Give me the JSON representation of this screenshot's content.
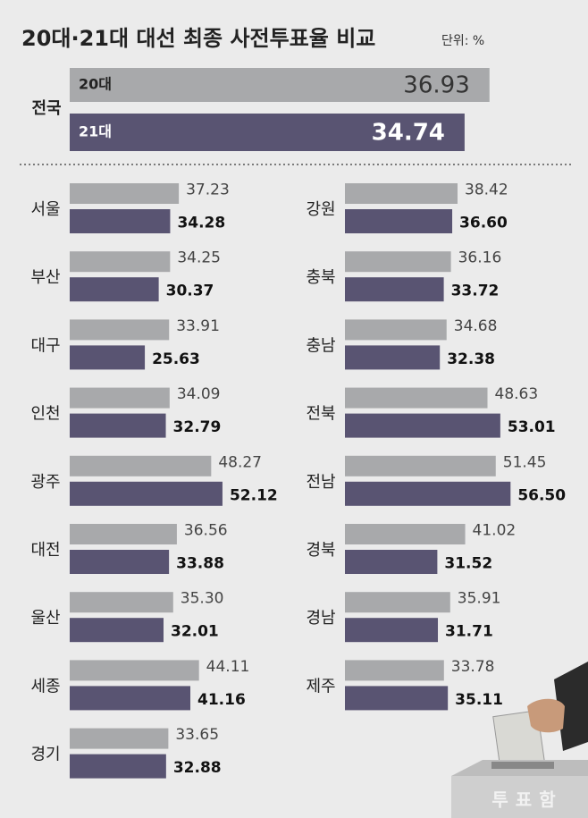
{
  "chart_data": [
    {
      "type": "bar",
      "title": "20대·21대 대선 최종 사전투표율 비교",
      "unit_note": "단위: %",
      "categories": [
        "전국"
      ],
      "series": [
        {
          "name": "20대",
          "color": "#a8a9ab",
          "values": [
            36.93
          ]
        },
        {
          "name": "21대",
          "color": "#595472",
          "values": [
            34.74
          ]
        }
      ]
    },
    {
      "type": "bar",
      "categories": [
        "서울",
        "부산",
        "대구",
        "인천",
        "광주",
        "대전",
        "울산",
        "세종",
        "경기",
        "강원",
        "충북",
        "충남",
        "전북",
        "전남",
        "경북",
        "경남",
        "제주"
      ],
      "series": [
        {
          "color": "#a8a9ab",
          "values": [
            37.23,
            34.25,
            33.91,
            34.09,
            48.27,
            36.56,
            35.3,
            44.11,
            33.65,
            38.42,
            36.16,
            34.68,
            48.63,
            51.45,
            41.02,
            35.91,
            33.78
          ],
          "value_labels": [
            "37.23",
            "34.25",
            "33.91",
            "34.09",
            "48.27",
            "36.56",
            "35.30",
            "44.11",
            "33.65",
            "38.42",
            "36.16",
            "34.68",
            "48.63",
            "51.45",
            "41.02",
            "35.91",
            "33.78"
          ]
        },
        {
          "color": "#595472",
          "values": [
            34.28,
            30.37,
            25.63,
            32.79,
            52.12,
            33.88,
            32.01,
            41.16,
            32.88,
            36.6,
            33.72,
            32.38,
            53.01,
            56.5,
            31.52,
            31.71,
            35.11
          ],
          "value_labels": [
            "34.28",
            "30.37",
            "25.63",
            "32.79",
            "52.12",
            "33.88",
            "32.01",
            "41.16",
            "32.88",
            "36.60",
            "33.72",
            "32.38",
            "53.01",
            "56.50",
            "31.52",
            "31.71",
            "35.11"
          ]
        }
      ]
    },
    {
      "type": "decoration",
      "ballot_box_label": "투표함"
    }
  ]
}
